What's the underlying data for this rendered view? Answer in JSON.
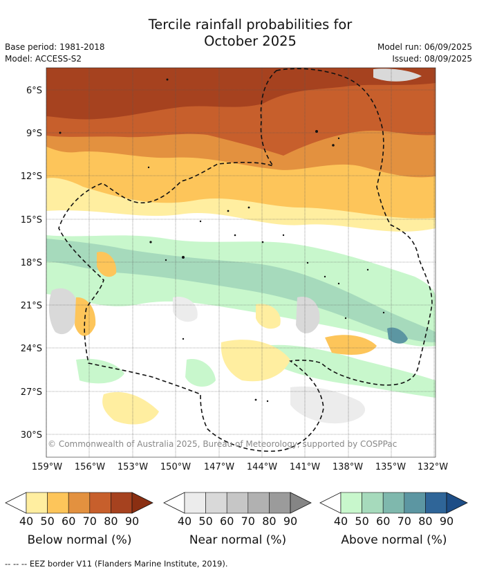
{
  "header": {
    "title_line1": "Tercile rainfall probabilities for",
    "title_line2": "October 2025",
    "base_period": "Base period: 1981-2018",
    "model": "Model: ACCESS-S2",
    "model_run": "Model run: 06/09/2025",
    "issued": "Issued: 08/09/2025"
  },
  "map": {
    "lat_labels": [
      "6°S",
      "9°S",
      "12°S",
      "15°S",
      "18°S",
      "21°S",
      "24°S",
      "27°S",
      "30°S"
    ],
    "lon_labels": [
      "159°W",
      "156°W",
      "153°W",
      "150°W",
      "147°W",
      "144°W",
      "141°W",
      "138°W",
      "135°W",
      "132°W"
    ],
    "copyright": "© Commonwealth of Australia 2025, Bureau of Meteorology, supported by COSPPac"
  },
  "legends": [
    {
      "id": "below",
      "title": "Below normal (%)",
      "ticks": [
        "40",
        "50",
        "60",
        "70",
        "80",
        "90"
      ],
      "colors": [
        "#ffeea0",
        "#fdc55a",
        "#e3913f",
        "#c75f2c",
        "#a6421f",
        "#8a2f12"
      ]
    },
    {
      "id": "near",
      "title": "Near normal (%)",
      "ticks": [
        "40",
        "50",
        "60",
        "70",
        "80",
        "90"
      ],
      "colors": [
        "#ececec",
        "#d9d9d9",
        "#c6c6c6",
        "#b1b1b1",
        "#9b9b9b",
        "#858585"
      ]
    },
    {
      "id": "above",
      "title": "Above normal (%)",
      "ticks": [
        "40",
        "50",
        "60",
        "70",
        "80",
        "90"
      ],
      "colors": [
        "#c8f7cc",
        "#a6dabc",
        "#7fb8ad",
        "#5c96a2",
        "#2f6598",
        "#1d4d86"
      ]
    }
  ],
  "footnote": "--  --  -- EEZ border V11 (Flanders Marine Institute, 2019)."
}
